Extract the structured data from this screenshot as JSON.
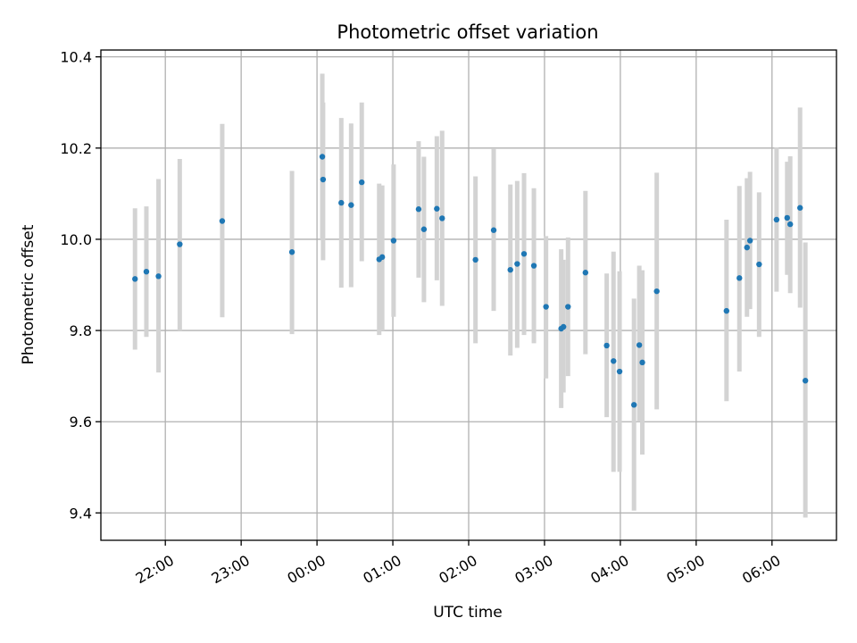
{
  "chart_data": {
    "type": "scatter",
    "title": "Photometric offset variation",
    "xlabel": "UTC time",
    "ylabel": "Photometric offset",
    "x_unit": "UTC time (hours relative to 00:00)",
    "xlim": [
      -2.85,
      6.85
    ],
    "ylim": [
      9.34,
      10.415
    ],
    "x_ticks": [
      {
        "t": -2,
        "label": "22:00"
      },
      {
        "t": -1,
        "label": "23:00"
      },
      {
        "t": 0,
        "label": "00:00"
      },
      {
        "t": 1,
        "label": "01:00"
      },
      {
        "t": 2,
        "label": "02:00"
      },
      {
        "t": 3,
        "label": "03:00"
      },
      {
        "t": 4,
        "label": "04:00"
      },
      {
        "t": 5,
        "label": "05:00"
      },
      {
        "t": 6,
        "label": "06:00"
      }
    ],
    "y_ticks": [
      {
        "v": 9.4,
        "label": "9.4"
      },
      {
        "v": 9.6,
        "label": "9.6"
      },
      {
        "v": 9.8,
        "label": "9.8"
      },
      {
        "v": 10.0,
        "label": "10.0"
      },
      {
        "v": 10.2,
        "label": "10.2"
      },
      {
        "v": 10.4,
        "label": "10.4"
      }
    ],
    "grid": true,
    "marker_color": "#1f77b4",
    "errorbar_color": "#d3d3d3",
    "points": [
      {
        "t": -2.4,
        "y": 9.913,
        "lo": 9.758,
        "hi": 10.068
      },
      {
        "t": -2.25,
        "y": 9.929,
        "lo": 9.786,
        "hi": 10.072
      },
      {
        "t": -2.09,
        "y": 9.919,
        "lo": 9.708,
        "hi": 10.132
      },
      {
        "t": -1.81,
        "y": 9.989,
        "lo": 9.8,
        "hi": 10.176
      },
      {
        "t": -1.25,
        "y": 10.04,
        "lo": 9.829,
        "hi": 10.253
      },
      {
        "t": -0.33,
        "y": 9.972,
        "lo": 9.792,
        "hi": 10.15
      },
      {
        "t": 0.07,
        "y": 10.181,
        "lo": 10.0,
        "hi": 10.363
      },
      {
        "t": 0.08,
        "y": 10.131,
        "lo": 9.954,
        "hi": 10.3
      },
      {
        "t": 0.32,
        "y": 10.08,
        "lo": 9.894,
        "hi": 10.266
      },
      {
        "t": 0.45,
        "y": 10.075,
        "lo": 9.895,
        "hi": 10.254
      },
      {
        "t": 0.59,
        "y": 10.125,
        "lo": 9.952,
        "hi": 10.3
      },
      {
        "t": 0.82,
        "y": 9.956,
        "lo": 9.79,
        "hi": 10.122
      },
      {
        "t": 0.86,
        "y": 9.961,
        "lo": 9.8,
        "hi": 10.118
      },
      {
        "t": 1.01,
        "y": 9.997,
        "lo": 9.83,
        "hi": 10.164
      },
      {
        "t": 1.34,
        "y": 10.066,
        "lo": 9.916,
        "hi": 10.215
      },
      {
        "t": 1.41,
        "y": 10.022,
        "lo": 9.862,
        "hi": 10.181
      },
      {
        "t": 1.58,
        "y": 10.067,
        "lo": 9.91,
        "hi": 10.226
      },
      {
        "t": 1.65,
        "y": 10.046,
        "lo": 9.854,
        "hi": 10.238
      },
      {
        "t": 2.09,
        "y": 9.955,
        "lo": 9.772,
        "hi": 10.138
      },
      {
        "t": 2.33,
        "y": 10.02,
        "lo": 9.843,
        "hi": 10.198
      },
      {
        "t": 2.55,
        "y": 9.933,
        "lo": 9.745,
        "hi": 10.12
      },
      {
        "t": 2.64,
        "y": 9.946,
        "lo": 9.762,
        "hi": 10.128
      },
      {
        "t": 2.73,
        "y": 9.968,
        "lo": 9.79,
        "hi": 10.145
      },
      {
        "t": 2.86,
        "y": 9.942,
        "lo": 9.772,
        "hi": 10.112
      },
      {
        "t": 3.02,
        "y": 9.852,
        "lo": 9.695,
        "hi": 10.007
      },
      {
        "t": 3.22,
        "y": 9.804,
        "lo": 9.63,
        "hi": 9.978
      },
      {
        "t": 3.25,
        "y": 9.808,
        "lo": 9.664,
        "hi": 9.955
      },
      {
        "t": 3.31,
        "y": 9.852,
        "lo": 9.7,
        "hi": 10.004
      },
      {
        "t": 3.54,
        "y": 9.927,
        "lo": 9.748,
        "hi": 10.106
      },
      {
        "t": 3.82,
        "y": 9.767,
        "lo": 9.61,
        "hi": 9.925
      },
      {
        "t": 3.91,
        "y": 9.733,
        "lo": 9.49,
        "hi": 9.973
      },
      {
        "t": 3.99,
        "y": 9.71,
        "lo": 9.49,
        "hi": 9.93
      },
      {
        "t": 4.18,
        "y": 9.637,
        "lo": 9.405,
        "hi": 9.87
      },
      {
        "t": 4.25,
        "y": 9.768,
        "lo": 9.6,
        "hi": 9.942
      },
      {
        "t": 4.29,
        "y": 9.73,
        "lo": 9.528,
        "hi": 9.932
      },
      {
        "t": 4.48,
        "y": 9.886,
        "lo": 9.627,
        "hi": 10.146
      },
      {
        "t": 5.4,
        "y": 9.843,
        "lo": 9.645,
        "hi": 10.043
      },
      {
        "t": 5.57,
        "y": 9.915,
        "lo": 9.71,
        "hi": 10.117
      },
      {
        "t": 5.67,
        "y": 9.982,
        "lo": 9.83,
        "hi": 10.134
      },
      {
        "t": 5.71,
        "y": 9.997,
        "lo": 9.847,
        "hi": 10.148
      },
      {
        "t": 5.83,
        "y": 9.945,
        "lo": 9.786,
        "hi": 10.103
      },
      {
        "t": 6.06,
        "y": 10.043,
        "lo": 9.885,
        "hi": 10.201
      },
      {
        "t": 6.2,
        "y": 10.047,
        "lo": 9.922,
        "hi": 10.17
      },
      {
        "t": 6.24,
        "y": 10.033,
        "lo": 9.882,
        "hi": 10.182
      },
      {
        "t": 6.37,
        "y": 10.069,
        "lo": 9.85,
        "hi": 10.289
      },
      {
        "t": 6.44,
        "y": 9.69,
        "lo": 9.39,
        "hi": 9.993
      }
    ]
  }
}
